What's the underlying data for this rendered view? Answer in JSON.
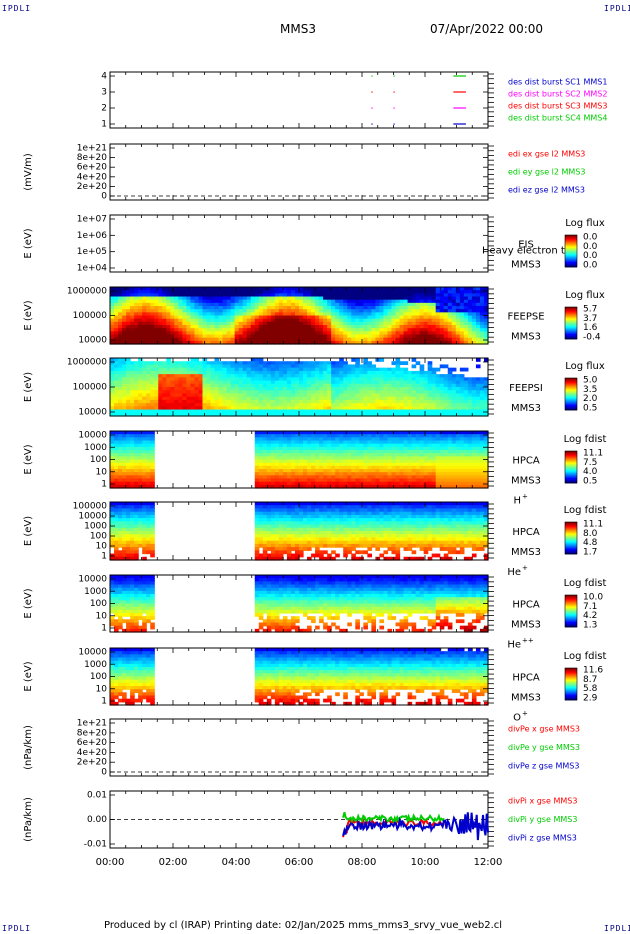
{
  "corner": {
    "top_left": "IPDLI",
    "top_right": "IPDLI",
    "bottom_left": "IPDLI",
    "bottom_right": "IPDLI"
  },
  "header": {
    "spacecraft": "MMS3",
    "datetime": "07/Apr/2022 00:00"
  },
  "footer": {
    "text": "Produced by cl (IRAP)   Printing date: 02/Jan/2025   mms_mms3_srvy_vue_web2.cl"
  },
  "colors": {
    "red": "#ff0000",
    "green": "#00cc00",
    "blue": "#0000cc",
    "magenta": "#ff00ff"
  },
  "chart_data": [
    {
      "id": "burst",
      "type": "line",
      "yticks": [
        "4",
        "3",
        "2",
        "1"
      ],
      "ylim": [
        0.5,
        4.5
      ],
      "ylabel": "",
      "legend": [
        {
          "text": "des dist burst SC1 MMS1",
          "color": "#0000cc"
        },
        {
          "text": "des dist burst SC2 MMS2",
          "color": "#ff00ff"
        },
        {
          "text": "des dist burst SC3 MMS3",
          "color": "#ff0000"
        },
        {
          "text": "des dist burst SC4 MMS4",
          "color": "#00cc00"
        }
      ],
      "series": [
        {
          "color": "#00cc00",
          "y": 4,
          "segments": [
            [
              10.9,
              11.3
            ]
          ],
          "dots": [
            8.3,
            9.0
          ]
        },
        {
          "color": "#ff0000",
          "y": 3,
          "segments": [
            [
              10.9,
              11.3
            ]
          ],
          "dots": [
            8.3,
            9.0
          ]
        },
        {
          "color": "#ff00ff",
          "y": 2,
          "segments": [
            [
              10.9,
              11.3
            ]
          ],
          "dots": [
            8.3,
            9.0
          ]
        },
        {
          "color": "#0000cc",
          "y": 1,
          "segments": [
            [
              10.9,
              11.3
            ]
          ],
          "dots": [
            8.3,
            9.0
          ]
        }
      ]
    },
    {
      "id": "edi",
      "type": "line",
      "yticks": [
        "1e+21",
        "8e+20",
        "6e+20",
        "4e+20",
        "2e+20",
        "0"
      ],
      "ylim": [
        0,
        1
      ],
      "ylabel": "(mV/m)",
      "zero_line": true,
      "legend": [
        {
          "text": "edi ex gse l2 MMS3",
          "color": "#ff0000"
        },
        {
          "text": "edi ey gse l2 MMS3",
          "color": "#00cc00"
        },
        {
          "text": "edi ez gse l2 MMS3",
          "color": "#0000cc"
        }
      ]
    },
    {
      "id": "eis",
      "type": "heatmap",
      "yticks": [
        "1e+07",
        "1e+06",
        "1e+05",
        "1e+04"
      ],
      "ylabel": "E (eV)",
      "instrument": [
        "EIS",
        "MMS3"
      ],
      "overlay_label": "Heavy electron to",
      "colorbar": {
        "title": "Log flux",
        "ticks": [
          "0.0",
          "0.0",
          "0.0",
          "0.0"
        ]
      },
      "profile": "empty"
    },
    {
      "id": "feepse",
      "type": "heatmap",
      "yticks": [
        "1000000",
        "100000",
        "10000"
      ],
      "ylabel": "E (eV)",
      "instrument": [
        "FEEPSE",
        "MMS3"
      ],
      "colorbar": {
        "title": "Log flux",
        "ticks": [
          "5.7",
          "3.7",
          "1.6",
          "-0.4"
        ]
      },
      "profile": "feepse"
    },
    {
      "id": "feepsi",
      "type": "heatmap",
      "yticks": [
        "1000000",
        "100000",
        "10000"
      ],
      "ylabel": "E (eV)",
      "instrument": [
        "FEEPSI",
        "MMS3"
      ],
      "colorbar": {
        "title": "Log flux",
        "ticks": [
          "5.0",
          "3.5",
          "2.0",
          "0.5"
        ]
      },
      "profile": "feepsi"
    },
    {
      "id": "hpca_h",
      "type": "heatmap",
      "yticks": [
        "10000",
        "1000",
        "100",
        "10",
        "1"
      ],
      "ylabel": "E (eV)",
      "instrument": [
        "HPCA",
        "MMS3"
      ],
      "species": "H",
      "charge": "+",
      "colorbar": {
        "title": "Log fdist",
        "ticks": [
          "11.1",
          "7.5",
          "4.0",
          "0.5"
        ]
      },
      "gap": [
        1.45,
        4.6
      ],
      "profile": "hpca_h"
    },
    {
      "id": "hpca_he",
      "type": "heatmap",
      "yticks": [
        "100000",
        "10000",
        "1000",
        "100",
        "10",
        "1"
      ],
      "ylabel": "E (eV)",
      "instrument": [
        "HPCA",
        "MMS3"
      ],
      "species": "He",
      "charge": "+",
      "colorbar": {
        "title": "Log fdist",
        "ticks": [
          "11.1",
          "8.0",
          "4.8",
          "1.7"
        ]
      },
      "gap": [
        1.45,
        4.6
      ],
      "profile": "hpca_he"
    },
    {
      "id": "hpca_hepp",
      "type": "heatmap",
      "yticks": [
        "10000",
        "1000",
        "100",
        "10",
        "1"
      ],
      "ylabel": "E (eV)",
      "instrument": [
        "HPCA",
        "MMS3"
      ],
      "species": "He",
      "charge": "++",
      "colorbar": {
        "title": "Log fdist",
        "ticks": [
          "10.0",
          "7.1",
          "4.2",
          "1.3"
        ]
      },
      "gap": [
        1.45,
        4.6
      ],
      "profile": "hpca_hepp"
    },
    {
      "id": "hpca_o",
      "type": "heatmap",
      "yticks": [
        "10000",
        "1000",
        "100",
        "10",
        "1"
      ],
      "ylabel": "E (eV)",
      "instrument": [
        "HPCA",
        "MMS3"
      ],
      "species": "O",
      "charge": "+",
      "colorbar": {
        "title": "Log fdist",
        "ticks": [
          "11.6",
          "8.7",
          "5.8",
          "2.9"
        ]
      },
      "gap": [
        1.45,
        4.6
      ],
      "profile": "hpca_o"
    },
    {
      "id": "divpe",
      "type": "line",
      "yticks": [
        "1e+21",
        "8e+20",
        "6e+20",
        "4e+20",
        "2e+20",
        "0"
      ],
      "ylim": [
        0,
        1
      ],
      "ylabel": "(nPa/km)",
      "zero_line": true,
      "legend": [
        {
          "text": "divPe x gse MMS3",
          "color": "#ff0000"
        },
        {
          "text": "divPe y gse MMS3",
          "color": "#00cc00"
        },
        {
          "text": "divPe z gse MMS3",
          "color": "#0000cc"
        }
      ]
    },
    {
      "id": "divpi",
      "type": "line",
      "yticks": [
        "0.01",
        "0.00",
        "-0.01"
      ],
      "ylim": [
        -0.015,
        0.015
      ],
      "ylabel": "(nPa/km)",
      "zero_line": true,
      "legend": [
        {
          "text": "divPi x gse MMS3",
          "color": "#ff0000"
        },
        {
          "text": "divPi y gse MMS3",
          "color": "#00cc00"
        },
        {
          "text": "divPi z gse MMS3",
          "color": "#0000cc"
        }
      ],
      "series": [
        {
          "name": "x",
          "color": "#ff0000",
          "start": 7.4,
          "end": 10.6,
          "mean": -0.002,
          "spread": 0.0015
        },
        {
          "name": "y",
          "color": "#00cc00",
          "start": 7.4,
          "end": 10.6,
          "mean": 0.0005,
          "spread": 0.0015
        },
        {
          "name": "z",
          "color": "#0000cc",
          "start": 7.4,
          "end": 12.0,
          "mean": -0.003,
          "spread": 0.0025
        }
      ]
    }
  ],
  "xaxis": {
    "ticks": [
      "00:00",
      "02:00",
      "04:00",
      "06:00",
      "08:00",
      "10:00",
      "12:00"
    ],
    "xlim": [
      0,
      12
    ]
  }
}
